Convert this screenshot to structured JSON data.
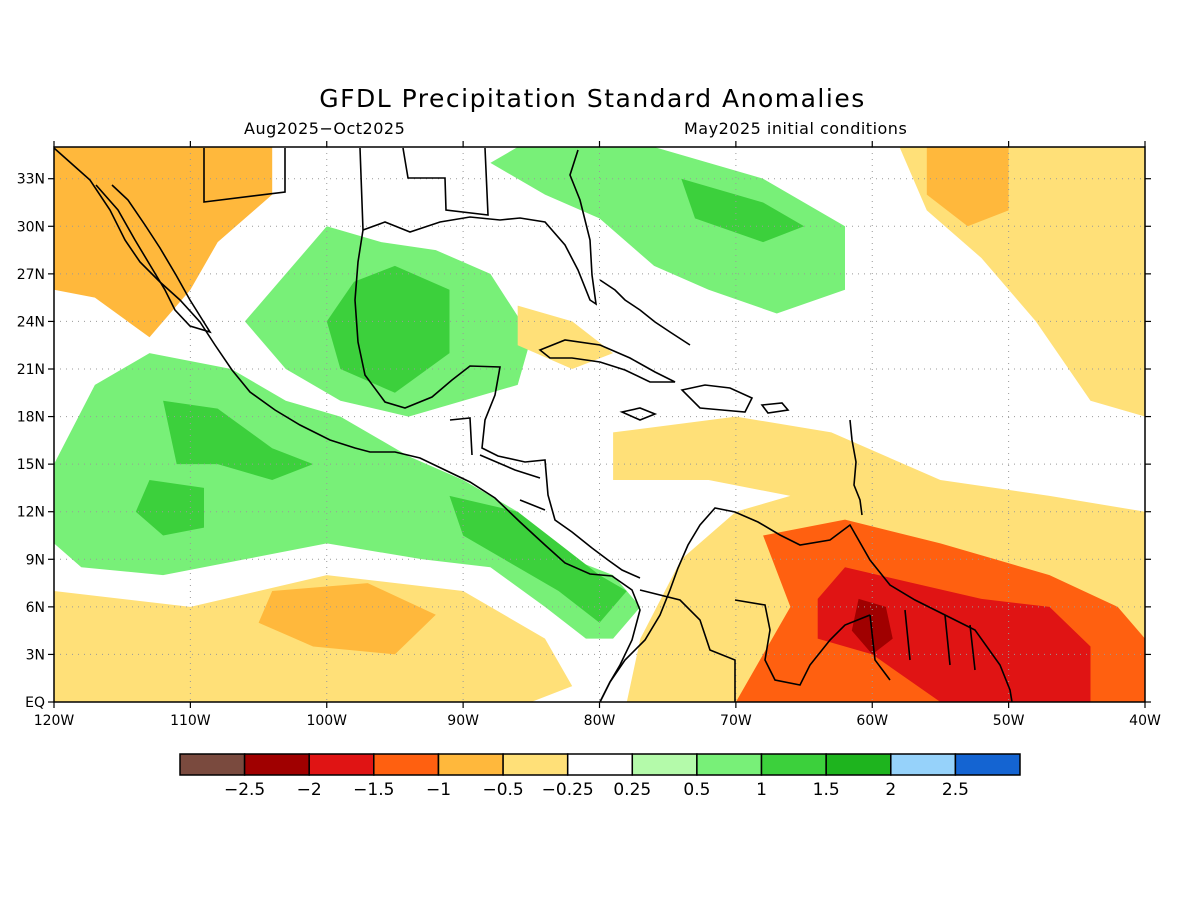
{
  "header": {
    "title": "GFDL Precipitation Standard Anomalies",
    "period": "Aug2025−Oct2025",
    "init": "May2025 initial conditions"
  },
  "map": {
    "lon_range": [
      -120,
      -40
    ],
    "lat_range": [
      0,
      35
    ],
    "lon_ticks": [
      {
        "value": -120,
        "label": "120W"
      },
      {
        "value": -110,
        "label": "110W"
      },
      {
        "value": -100,
        "label": "100W"
      },
      {
        "value": -90,
        "label": "90W"
      },
      {
        "value": -80,
        "label": "80W"
      },
      {
        "value": -70,
        "label": "70W"
      },
      {
        "value": -60,
        "label": "60W"
      },
      {
        "value": -50,
        "label": "50W"
      },
      {
        "value": -40,
        "label": "40W"
      }
    ],
    "lat_ticks": [
      {
        "value": 0,
        "label": "EQ"
      },
      {
        "value": 3,
        "label": "3N"
      },
      {
        "value": 6,
        "label": "6N"
      },
      {
        "value": 9,
        "label": "9N"
      },
      {
        "value": 12,
        "label": "12N"
      },
      {
        "value": 15,
        "label": "15N"
      },
      {
        "value": 18,
        "label": "18N"
      },
      {
        "value": 21,
        "label": "21N"
      },
      {
        "value": 24,
        "label": "24N"
      },
      {
        "value": 27,
        "label": "27N"
      },
      {
        "value": 30,
        "label": "30N"
      },
      {
        "value": 33,
        "label": "33N"
      }
    ],
    "anomaly_regions": [
      {
        "name": "eastern-pacific-wet",
        "level": 0.75,
        "color": "#78f078",
        "polygon": [
          [
            -120,
            15
          ],
          [
            -117,
            20
          ],
          [
            -113,
            22
          ],
          [
            -107,
            21
          ],
          [
            -103,
            19
          ],
          [
            -99,
            18
          ],
          [
            -94,
            15.5
          ],
          [
            -90,
            14
          ],
          [
            -86,
            12
          ],
          [
            -82,
            9
          ],
          [
            -79,
            8
          ],
          [
            -77,
            6
          ],
          [
            -79,
            4
          ],
          [
            -81,
            4
          ],
          [
            -84,
            6
          ],
          [
            -88,
            8.5
          ],
          [
            -93,
            9
          ],
          [
            -100,
            10
          ],
          [
            -106,
            9
          ],
          [
            -112,
            8
          ],
          [
            -118,
            8.5
          ],
          [
            -120,
            10
          ]
        ]
      },
      {
        "name": "eastern-pacific-core",
        "level": 1.25,
        "color": "#3cd03c",
        "polygon": [
          [
            -112,
            19
          ],
          [
            -108,
            18.5
          ],
          [
            -104,
            16
          ],
          [
            -101,
            15
          ],
          [
            -104,
            14
          ],
          [
            -108,
            15
          ],
          [
            -111,
            15
          ]
        ]
      },
      {
        "name": "eastern-pacific-core-2",
        "level": 1.25,
        "color": "#3cd03c",
        "polygon": [
          [
            -113,
            14
          ],
          [
            -109,
            13.5
          ],
          [
            -109,
            11
          ],
          [
            -112,
            10.5
          ],
          [
            -114,
            12
          ]
        ]
      },
      {
        "name": "central-america-core",
        "level": 1.25,
        "color": "#3cd03c",
        "polygon": [
          [
            -91,
            13
          ],
          [
            -86,
            12
          ],
          [
            -83,
            10
          ],
          [
            -80,
            8
          ],
          [
            -78,
            7
          ],
          [
            -80,
            5
          ],
          [
            -83,
            7
          ],
          [
            -87,
            9
          ],
          [
            -90,
            10.5
          ]
        ]
      },
      {
        "name": "mexico-gulf-wet",
        "level": 0.75,
        "color": "#78f078",
        "polygon": [
          [
            -103,
            27
          ],
          [
            -100,
            30
          ],
          [
            -96,
            29
          ],
          [
            -92,
            28.5
          ],
          [
            -88,
            27
          ],
          [
            -85,
            23
          ],
          [
            -86,
            20
          ],
          [
            -90,
            19
          ],
          [
            -94,
            18
          ],
          [
            -99,
            19
          ],
          [
            -103,
            21
          ],
          [
            -106,
            24
          ]
        ]
      },
      {
        "name": "mexico-gulf-core",
        "level": 1.25,
        "color": "#3cd03c",
        "polygon": [
          [
            -98,
            26.5
          ],
          [
            -95,
            27.5
          ],
          [
            -91,
            26
          ],
          [
            -91,
            22
          ],
          [
            -95,
            19.5
          ],
          [
            -99,
            21
          ],
          [
            -100,
            24
          ]
        ]
      },
      {
        "name": "atlantic-coast-wet",
        "level": 0.75,
        "color": "#78f078",
        "polygon": [
          [
            -86,
            35
          ],
          [
            -76,
            35
          ],
          [
            -68,
            33
          ],
          [
            -62,
            30
          ],
          [
            -62,
            26
          ],
          [
            -67,
            24.5
          ],
          [
            -72,
            26
          ],
          [
            -76,
            27.5
          ],
          [
            -80,
            30.5
          ],
          [
            -84,
            32
          ],
          [
            -88,
            34
          ]
        ]
      },
      {
        "name": "atlantic-coast-core",
        "level": 1.25,
        "color": "#3cd03c",
        "polygon": [
          [
            -74,
            33
          ],
          [
            -68,
            31.5
          ],
          [
            -65,
            30
          ],
          [
            -68,
            29
          ],
          [
            -73,
            30.5
          ]
        ]
      },
      {
        "name": "baja-dry",
        "level": -0.75,
        "color": "#ffb83c",
        "polygon": [
          [
            -120,
            35
          ],
          [
            -104,
            35
          ],
          [
            -104,
            32
          ],
          [
            -108,
            29
          ],
          [
            -110,
            26
          ],
          [
            -113,
            23
          ],
          [
            -117,
            25.5
          ],
          [
            -120,
            26
          ]
        ]
      },
      {
        "name": "gulf-dry-patch",
        "level": -0.4,
        "color": "#ffe078",
        "polygon": [
          [
            -86,
            25
          ],
          [
            -82,
            24
          ],
          [
            -79,
            22
          ],
          [
            -82,
            21
          ],
          [
            -86,
            22.5
          ]
        ]
      },
      {
        "name": "caribbean-dry",
        "level": -0.4,
        "color": "#ffe078",
        "polygon": [
          [
            -79,
            17
          ],
          [
            -70,
            18
          ],
          [
            -63,
            17
          ],
          [
            -55,
            14
          ],
          [
            -47,
            13
          ],
          [
            -40,
            12
          ],
          [
            -40,
            0
          ],
          [
            -78,
            0
          ],
          [
            -77,
            4
          ],
          [
            -74,
            9
          ],
          [
            -70,
            12
          ],
          [
            -66,
            13
          ],
          [
            -72,
            14
          ],
          [
            -79,
            14
          ]
        ]
      },
      {
        "name": "south-america-dry",
        "level": -1.25,
        "color": "#ff6010",
        "polygon": [
          [
            -68,
            10.5
          ],
          [
            -62,
            11.5
          ],
          [
            -55,
            10
          ],
          [
            -47,
            8
          ],
          [
            -42,
            6
          ],
          [
            -40,
            4
          ],
          [
            -40,
            0
          ],
          [
            -70,
            0
          ],
          [
            -68,
            3
          ],
          [
            -66,
            6
          ]
        ]
      },
      {
        "name": "guianas-very-dry",
        "level": -1.75,
        "color": "#e01414",
        "polygon": [
          [
            -62,
            8.5
          ],
          [
            -57,
            7.5
          ],
          [
            -52,
            6.5
          ],
          [
            -47,
            6
          ],
          [
            -44,
            3.5
          ],
          [
            -44,
            0
          ],
          [
            -55,
            0
          ],
          [
            -60,
            3
          ],
          [
            -64,
            4
          ],
          [
            -64,
            6.5
          ]
        ]
      },
      {
        "name": "guianas-extreme",
        "level": -2.25,
        "color": "#a00000",
        "polygon": [
          [
            -61,
            6.5
          ],
          [
            -59,
            6
          ],
          [
            -58.5,
            4
          ],
          [
            -60,
            3
          ],
          [
            -61.5,
            4.5
          ]
        ]
      },
      {
        "name": "equatorial-pacific-dry",
        "level": -0.4,
        "color": "#ffe078",
        "polygon": [
          [
            -120,
            7
          ],
          [
            -110,
            6
          ],
          [
            -100,
            8
          ],
          [
            -90,
            7
          ],
          [
            -84,
            4
          ],
          [
            -82,
            1
          ],
          [
            -85,
            0
          ],
          [
            -120,
            0
          ]
        ]
      },
      {
        "name": "equatorial-pacific-dry-core",
        "level": -0.75,
        "color": "#ffb83c",
        "polygon": [
          [
            -104,
            7
          ],
          [
            -97,
            7.5
          ],
          [
            -92,
            5.5
          ],
          [
            -95,
            3
          ],
          [
            -101,
            3.5
          ],
          [
            -105,
            5
          ]
        ]
      },
      {
        "name": "subtropical-atlantic-dry",
        "level": -0.4,
        "color": "#ffe078",
        "polygon": [
          [
            -58,
            35
          ],
          [
            -40,
            35
          ],
          [
            -40,
            18
          ],
          [
            -44,
            19
          ],
          [
            -48,
            24
          ],
          [
            -52,
            28
          ],
          [
            -56,
            31
          ]
        ]
      },
      {
        "name": "subtropical-atlantic-dry-core",
        "level": -0.75,
        "color": "#ffb83c",
        "polygon": [
          [
            -56,
            35
          ],
          [
            -50,
            35
          ],
          [
            -50,
            31
          ],
          [
            -53,
            30
          ],
          [
            -56,
            32
          ]
        ]
      }
    ]
  },
  "colorbar": {
    "colors": [
      "#7a4a3e",
      "#a00000",
      "#e01414",
      "#ff6010",
      "#ffb83c",
      "#ffe078",
      "#ffffff",
      "#b4faaa",
      "#78f078",
      "#3cd03c",
      "#1eb41e",
      "#96d2fa",
      "#1464d2"
    ],
    "labels": [
      "−2.5",
      "−2",
      "−1.5",
      "−1",
      "−0.5",
      "−0.25",
      "0.25",
      "0.5",
      "1",
      "1.5",
      "2",
      "2.5"
    ]
  }
}
